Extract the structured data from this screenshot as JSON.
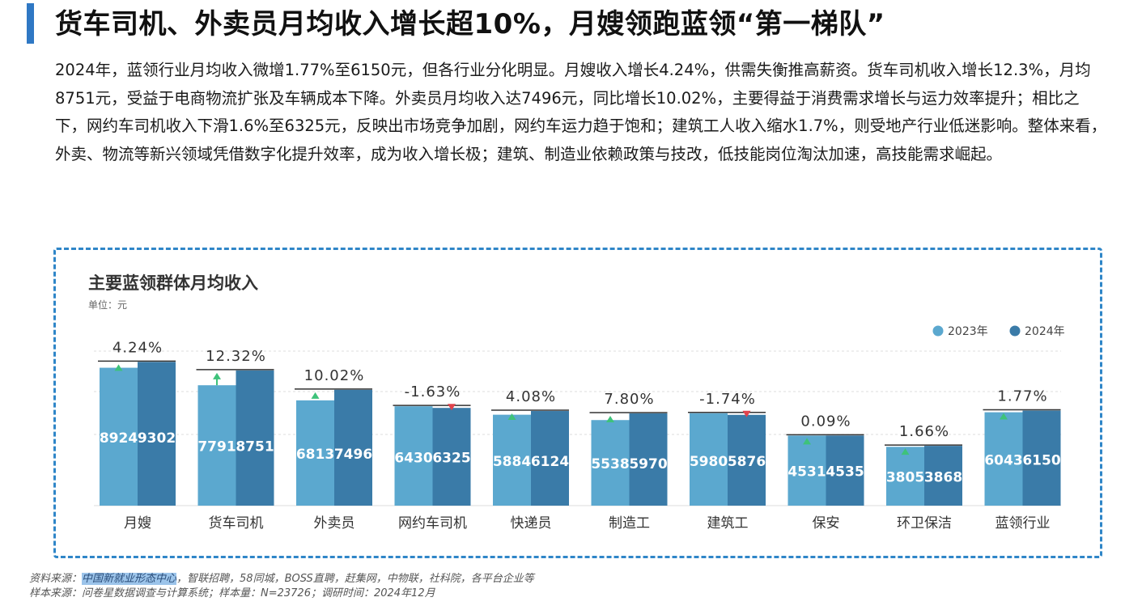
{
  "header": {
    "title": "货车司机、外卖员月均收入增长超10%，月嫂领跑蓝领“第一梯队”",
    "paragraph": "2024年，蓝领行业月均收入微增1.77%至6150元，但各行业分化明显。月嫂收入增长4.24%，供需失衡推高薪资。货车司机收入增长12.3%，月均8751元，受益于电商物流扩张及车辆成本下降。外卖员月均收入达7496元，同比增长10.02%，主要得益于消费需求增长与运力效率提升；相比之下，网约车司机收入下滑1.6%至6325元，反映出市场竞争加剧，网约车运力趋于饱和；建筑工人收入缩水1.7%，则受地产行业低迷影响。整体来看，外卖、物流等新兴领域凭借数字化提升效率，成为收入增长极；建筑、制造业依赖政策与技改，低技能岗位淘汰加速，高技能需求崛起。",
    "accent_color": "#2f78c4"
  },
  "chart_data": {
    "type": "bar",
    "title": "主要蓝领群体月均收入",
    "unit_label": "单位：元",
    "legend_position": "top-right",
    "categories": [
      "月嫂",
      "货车司机",
      "外卖员",
      "网约车司机",
      "快递员",
      "制造工",
      "建筑工",
      "保安",
      "环卫保洁",
      "蓝领行业"
    ],
    "series": [
      {
        "name": "2023年",
        "color": "#5ba8cf",
        "values": [
          8924,
          7791,
          6813,
          6430,
          5884,
          5538,
          5980,
          4531,
          3805,
          6043
        ]
      },
      {
        "name": "2024年",
        "color": "#3a7ba8",
        "values": [
          9302,
          8751,
          7496,
          6325,
          6124,
          5970,
          5876,
          4535,
          3868,
          6150
        ]
      }
    ],
    "changes": [
      "4.24%",
      "12.32%",
      "10.02%",
      "-1.63%",
      "4.08%",
      "7.80%",
      "-1.74%",
      "0.09%",
      "1.66%",
      "1.77%"
    ],
    "directions": [
      "up",
      "up",
      "up",
      "down",
      "up",
      "up",
      "down",
      "up",
      "up",
      "up"
    ],
    "up_color": "#3ec27a",
    "down_color": "#e0434c",
    "grid": true,
    "ylim": [
      0,
      10000
    ]
  },
  "footer": {
    "source_prefix": "资料来源：",
    "source_highlight": "中国新就业形态中心",
    "source_rest": "，智联招聘，58同城，BOSS直聘，赶集网，中物联，社科院，各平台企业等",
    "sample_note": "样本来源：问卷星数据调查与计算系统；样本量：N=23726；调研时间：2024年12月"
  }
}
